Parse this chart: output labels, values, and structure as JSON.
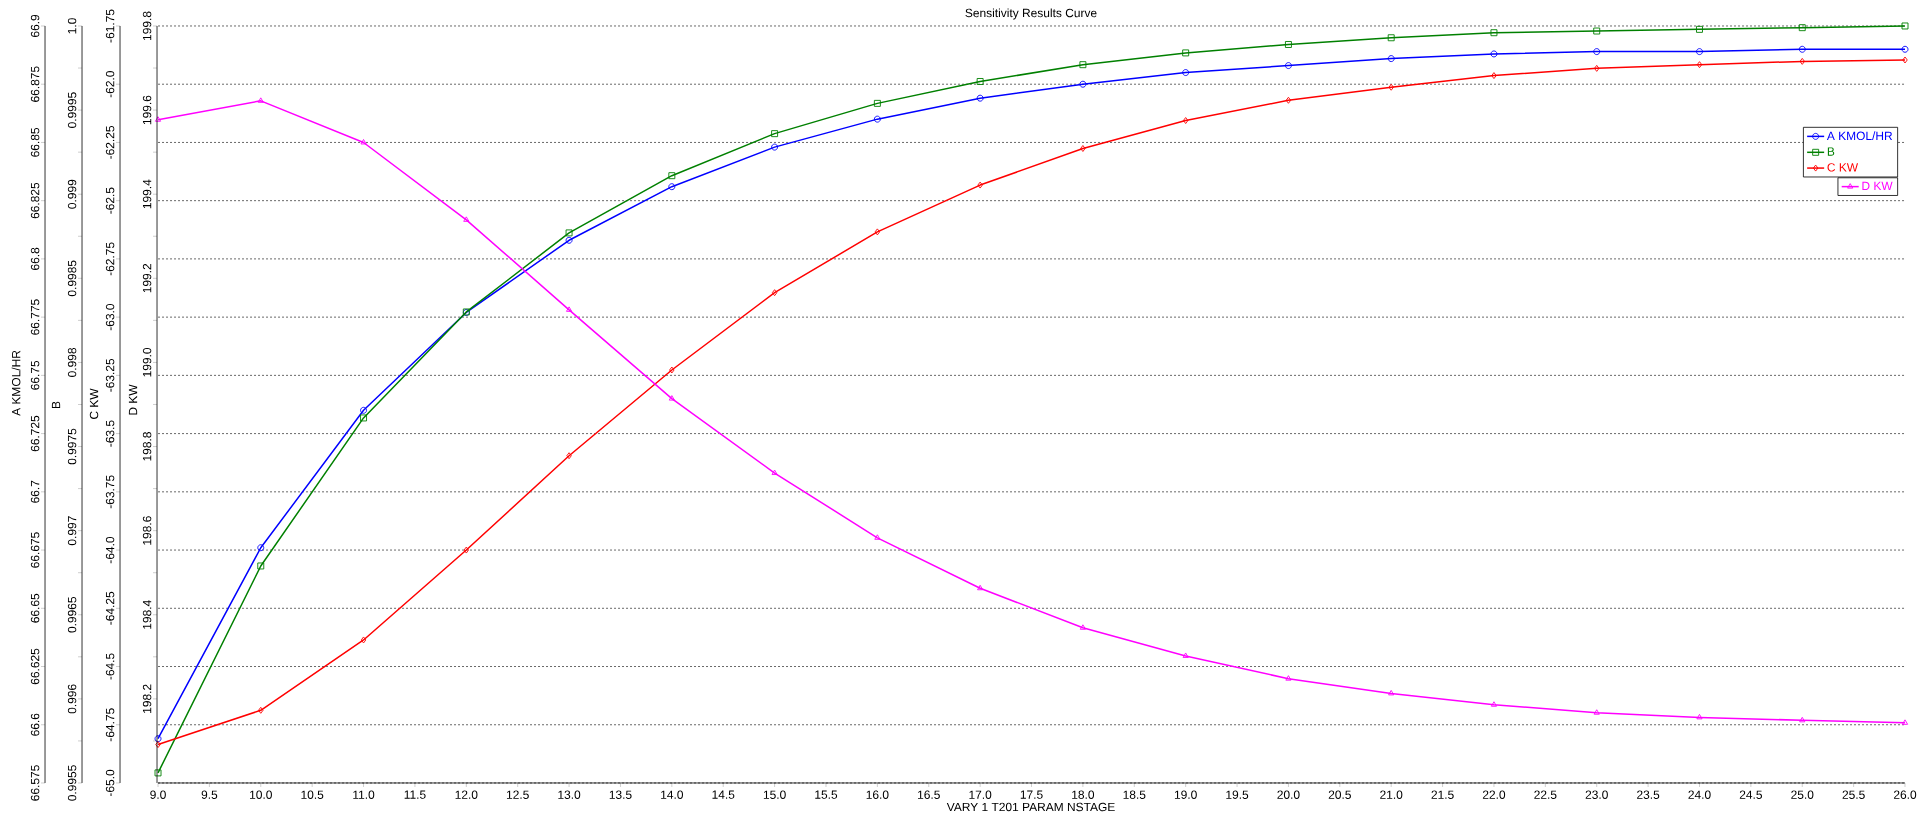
{
  "chart_data": [
    {
      "type": "line",
      "title": "Sensitivity Results Curve",
      "xlabel": "VARY 1 T201 PARAM NSTAGE",
      "ylabel": "A KMOL/HR",
      "y2label": "B",
      "y3label": "C KW",
      "x": [
        9,
        10,
        11,
        12,
        13,
        14,
        15,
        16,
        17,
        18,
        19,
        20,
        21,
        22,
        23,
        24,
        25,
        26
      ],
      "xlim": [
        9,
        26
      ],
      "xticks": [
        {
          "value": 9,
          "label": "9.0"
        },
        9.5,
        {
          "value": 10,
          "label": "10.0"
        },
        10.5,
        {
          "value": 11,
          "label": "11.0"
        },
        11.5,
        {
          "value": 12,
          "label": "12.0"
        },
        12.5,
        {
          "value": 13,
          "label": "13.0"
        },
        13.5,
        {
          "value": 14,
          "label": "14.0"
        },
        14.5,
        {
          "value": 15,
          "label": "15.0"
        },
        15.5,
        {
          "value": 16,
          "label": "16.0"
        },
        16.5,
        {
          "value": 17,
          "label": "17.0"
        },
        17.5,
        {
          "value": 18,
          "label": "18.0"
        },
        18.5,
        {
          "value": 19,
          "label": "19.0"
        },
        19.5,
        {
          "value": 20,
          "label": "20.0"
        },
        20.5,
        {
          "value": 21,
          "label": "21.0"
        },
        21.5,
        {
          "value": 22,
          "label": "22.0"
        },
        22.5,
        {
          "value": 23,
          "label": "23.0"
        },
        23.5,
        {
          "value": 24,
          "label": "24.0"
        },
        24.5,
        {
          "value": 25,
          "label": "25.0"
        },
        25.5,
        {
          "value": 26,
          "label": "26.0"
        }
      ],
      "ylim": [
        66.575,
        66.9
      ],
      "yticks": [
        66.575,
        66.6,
        66.625,
        66.65,
        66.675,
        66.7,
        66.725,
        66.75,
        66.775,
        66.8,
        66.825,
        66.85,
        66.875,
        66.9
      ],
      "y2lim": [
        0.9955,
        1.0
      ],
      "y2ticks": [
        0.9955,
        {
          "value": 0.99575,
          "label": null
        },
        0.996,
        {
          "value": 0.99625,
          "label": null
        },
        0.9965,
        {
          "value": 0.99675,
          "label": null
        },
        0.997,
        {
          "value": 0.99725,
          "label": null
        },
        0.9975,
        {
          "value": 0.99775,
          "label": null
        },
        0.998,
        {
          "value": 0.99825,
          "label": null
        },
        0.9985,
        {
          "value": 0.99875,
          "label": null
        },
        0.999,
        {
          "value": 0.99925,
          "label": null
        },
        0.9995,
        {
          "value": 0.99975,
          "label": null
        },
        {
          "value": 1.0,
          "label": "1.0"
        }
      ],
      "y3lim": [
        -65.0,
        -61.75
      ],
      "y3ticks": [
        {
          "value": -65.0,
          "label": "-65.0"
        },
        -64.75,
        -64.5,
        -64.25,
        {
          "value": -64.0,
          "label": "-64.0"
        },
        -63.75,
        -63.5,
        -63.25,
        {
          "value": -63.0,
          "label": "-63.0"
        },
        -62.75,
        -62.5,
        -62.25,
        {
          "value": -62.0,
          "label": "-62.0"
        },
        -61.75
      ],
      "grid": "y",
      "legend": "top right",
      "line_style": "solid",
      "series": [
        {
          "name": "A KMOL/HR",
          "color": "#0000ff",
          "marker": "circle",
          "values": [
            66.594,
            66.676,
            66.735,
            66.777,
            66.808,
            66.831,
            66.848,
            66.86,
            66.869,
            66.875,
            66.88,
            66.883,
            66.886,
            66.888,
            66.889,
            66.889,
            66.89,
            66.89
          ]
        },
        {
          "name": "B",
          "color": "#008000",
          "axis": "y2",
          "marker": "square",
          "values": [
            0.99556,
            0.99679,
            0.99767,
            0.9983,
            0.99877,
            0.99911,
            0.99936,
            0.99954,
            0.99967,
            0.99977,
            0.99984,
            0.99989,
            0.99993,
            0.99996,
            0.99997,
            0.99998,
            0.99999,
            1.0
          ]
        },
        {
          "name": "C KW",
          "color": "#ff0000",
          "axis": "y3",
          "marker": "diamond",
          "values": [
            -64.835,
            -64.688,
            -64.386,
            -64.0,
            -63.595,
            -63.227,
            -62.895,
            -62.634,
            -62.433,
            -62.276,
            -62.156,
            -62.069,
            -62.013,
            -61.963,
            -61.932,
            -61.916,
            -61.902,
            -61.896
          ]
        }
      ]
    },
    {
      "type": "line",
      "ylabel": "D KW",
      "x": [
        9,
        10,
        11,
        12,
        13,
        14,
        15,
        16,
        17,
        18,
        19,
        20,
        21,
        22,
        23,
        24,
        25,
        26
      ],
      "xlim": [
        9,
        26
      ],
      "ylim": [
        198.0,
        199.8
      ],
      "yticks": [
        {
          "value": 198.1,
          "label": null
        },
        198.2,
        {
          "value": 198.3,
          "label": null
        },
        198.4,
        {
          "value": 198.5,
          "label": null
        },
        198.6,
        {
          "value": 198.7,
          "label": null
        },
        198.8,
        {
          "value": 198.9,
          "label": null
        },
        {
          "value": 199.0,
          "label": "199.0"
        },
        {
          "value": 199.1,
          "label": null
        },
        199.2,
        {
          "value": 199.3,
          "label": null
        },
        199.4,
        {
          "value": 199.5,
          "label": null
        },
        199.6,
        {
          "value": 199.7,
          "label": null
        },
        199.8
      ],
      "tick_labels": "y",
      "legend": "top right",
      "line_style": "solid",
      "series": [
        {
          "name": "D KW",
          "color": "#ff00ff",
          "marker": "triangle",
          "values": [
            199.577,
            199.622,
            199.523,
            199.339,
            199.125,
            198.914,
            198.737,
            198.583,
            198.463,
            198.369,
            198.302,
            198.248,
            198.213,
            198.186,
            198.167,
            198.156,
            198.149,
            198.143
          ]
        }
      ]
    }
  ]
}
